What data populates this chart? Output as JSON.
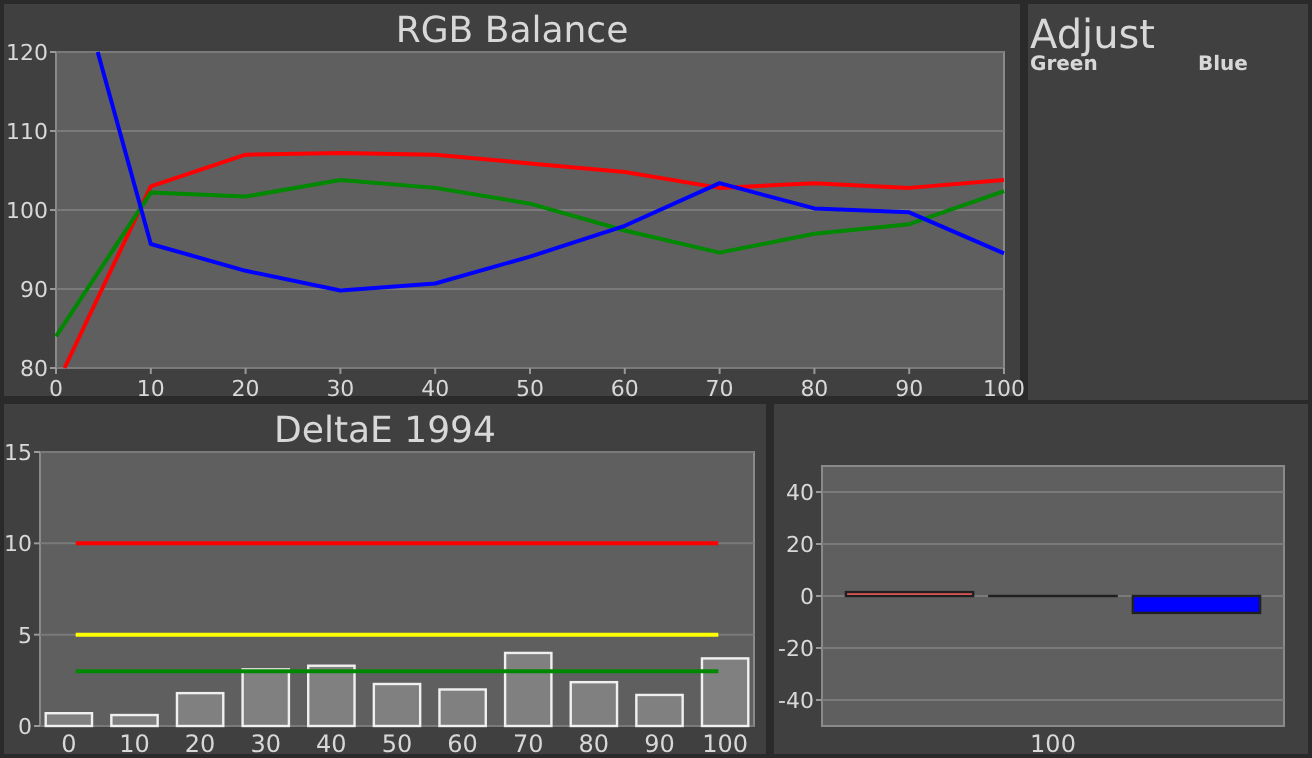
{
  "chart_data": [
    {
      "type": "line",
      "title": "RGB Balance",
      "xlim": [
        0,
        100
      ],
      "xticks": [
        0,
        10,
        20,
        30,
        40,
        50,
        60,
        70,
        80,
        90,
        100
      ],
      "ylim": [
        80,
        120
      ],
      "yticks": [
        80,
        90,
        100,
        110,
        120
      ],
      "grid": "y",
      "series": [
        {
          "color": "#ff0000",
          "x": [
            0.9,
            10,
            20,
            30,
            40,
            50,
            60,
            70,
            80,
            90,
            100
          ],
          "values": [
            80,
            103,
            107,
            107.2,
            107,
            105.9,
            104.8,
            102.8,
            103.4,
            102.8,
            103.8
          ]
        },
        {
          "color": "#008800",
          "x": [
            0,
            10,
            20,
            30,
            40,
            50,
            60,
            70,
            80,
            90,
            100
          ],
          "values": [
            84,
            102.2,
            101.7,
            103.8,
            102.8,
            100.8,
            97.4,
            94.6,
            97,
            98.2,
            102.4
          ]
        },
        {
          "color": "#0000ff",
          "x": [
            4.4,
            10,
            20,
            30,
            40,
            50,
            60,
            70,
            80,
            90,
            100
          ],
          "values": [
            120,
            95.7,
            92.3,
            89.8,
            90.7,
            94.1,
            98,
            103.4,
            100.2,
            99.7,
            94.5
          ]
        }
      ]
    },
    {
      "type": "other",
      "title": "Adjust",
      "annotations": [
        "Green",
        "Blue"
      ]
    },
    {
      "type": "bar",
      "title": "DeltaE 1994",
      "categories": [
        "0",
        "10",
        "20",
        "30",
        "40",
        "50",
        "60",
        "70",
        "80",
        "90",
        "100"
      ],
      "values": [
        0.7,
        0.6,
        1.8,
        3.1,
        3.3,
        2.3,
        2.0,
        4.0,
        2.4,
        1.7,
        3.7
      ],
      "color": "#808080",
      "ylim": [
        0,
        15
      ],
      "yticks": [
        0,
        5,
        10,
        15
      ],
      "grid": "y",
      "ref_lines": [
        {
          "axis": "y",
          "value": 10,
          "color": "#ff0000"
        },
        {
          "axis": "y",
          "value": 5,
          "color": "#ffff00"
        },
        {
          "axis": "y",
          "value": 3,
          "color": "#008800"
        }
      ]
    },
    {
      "type": "bar",
      "categories": [
        null,
        "100",
        null
      ],
      "values": [
        1.5,
        0,
        -6.5
      ],
      "colors": [
        "#ff6060",
        "#008800",
        "#0000ff"
      ],
      "ylim": [
        -50,
        50
      ],
      "yticks": [
        -40,
        -20,
        0,
        20,
        40
      ],
      "grid": "y"
    }
  ]
}
